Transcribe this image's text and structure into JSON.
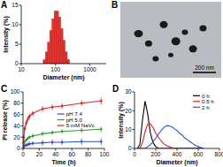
{
  "chart_data": [
    {
      "type": "histogram",
      "title": "A",
      "x_label": "Diameter (nm)",
      "y_label": "Intensity (%)",
      "log": "x",
      "bins": [
        43.8,
        50.7,
        58.7,
        68.0,
        78.7,
        91.2,
        105.6,
        122.3,
        141.6,
        164.0,
        189.9,
        219.9,
        254.6
      ],
      "values": [
        1,
        3,
        5.5,
        8.5,
        11.5,
        13.5,
        13.5,
        12,
        9,
        6,
        3,
        1
      ],
      "color": "#e8312a",
      "xlim": [
        10,
        3000
      ],
      "xticks": [
        10,
        100,
        1000
      ],
      "ylim": [
        0,
        15
      ],
      "yticks": [
        0,
        5,
        10,
        15
      ]
    },
    {
      "type": "image",
      "title": "B",
      "annotations": [
        "200 nm"
      ]
    },
    {
      "type": "line",
      "title": "C",
      "x_label": "Time (h)",
      "y_label": "PI release (%)",
      "x": [
        0,
        1,
        2,
        4,
        6,
        8,
        12,
        24,
        36,
        48,
        72,
        96
      ],
      "series": [
        {
          "name": "pH 7.4",
          "color": "#2a4fd6",
          "marker": "circle",
          "values": [
            0,
            3,
            5,
            6,
            7,
            8,
            9,
            10,
            11,
            11,
            12,
            12
          ],
          "errors": [
            0,
            2,
            3,
            3,
            3,
            4,
            4,
            5,
            5,
            5,
            6,
            6
          ]
        },
        {
          "name": "pH 5.0",
          "color": "#2ca02c",
          "marker": "circle",
          "values": [
            0,
            8,
            12,
            15,
            18,
            20,
            22,
            26,
            28,
            30,
            32,
            34
          ],
          "errors": [
            0,
            2,
            3,
            3,
            3,
            3,
            4,
            4,
            4,
            4,
            4,
            5
          ]
        },
        {
          "name": "5 mM NaVc",
          "color": "#e02020",
          "marker": "circle",
          "values": [
            0,
            20,
            35,
            45,
            52,
            57,
            62,
            70,
            73,
            75,
            80,
            84
          ],
          "errors": [
            0,
            4,
            5,
            5,
            5,
            5,
            5,
            5,
            5,
            5,
            5,
            6
          ]
        }
      ],
      "xlim": [
        0,
        100
      ],
      "xticks": [
        0,
        20,
        40,
        60,
        80,
        100
      ],
      "ylim": [
        0,
        100
      ],
      "yticks": [
        0,
        20,
        40,
        60,
        80,
        100
      ],
      "legend": "right"
    },
    {
      "type": "line",
      "title": "D",
      "x_label": "Diameter (nm)",
      "y_label": "Intensity (%)",
      "x": [
        25,
        50,
        75,
        100,
        125,
        150,
        175,
        200,
        225,
        250,
        275,
        300,
        325,
        350,
        375,
        400,
        425,
        450,
        475,
        500,
        525,
        550,
        575,
        600,
        625,
        650
      ],
      "series": [
        {
          "name": "0 h",
          "color": "#000000",
          "values": [
            0,
            2,
            15,
            25,
            18,
            8,
            3,
            1,
            0,
            0,
            0,
            0,
            0,
            0,
            0,
            0,
            0,
            0,
            0,
            0,
            0,
            0,
            0,
            0,
            0,
            0
          ]
        },
        {
          "name": "0.5 h",
          "color": "#e02020",
          "values": [
            0,
            0,
            3,
            9,
            13,
            13,
            11,
            8,
            6,
            4,
            2.5,
            1.5,
            1,
            0.5,
            0,
            0,
            0,
            0,
            0,
            0,
            0,
            0,
            0,
            0,
            0,
            0
          ]
        },
        {
          "name": "2 h",
          "color": "#2a4fd6",
          "values": [
            0,
            0,
            0,
            0,
            1,
            2,
            3.5,
            5.5,
            7.5,
            9.5,
            11,
            12,
            12,
            11.5,
            10.5,
            9.5,
            8,
            7,
            5.5,
            4.5,
            3.5,
            2.5,
            1.5,
            1,
            0.5,
            0
          ]
        }
      ],
      "xlim": [
        0,
        800
      ],
      "xticks": [
        0,
        200,
        400,
        600,
        800
      ],
      "ylim": [
        0,
        30
      ],
      "yticks": [
        0,
        10,
        20,
        30
      ],
      "legend": "upper right"
    }
  ]
}
